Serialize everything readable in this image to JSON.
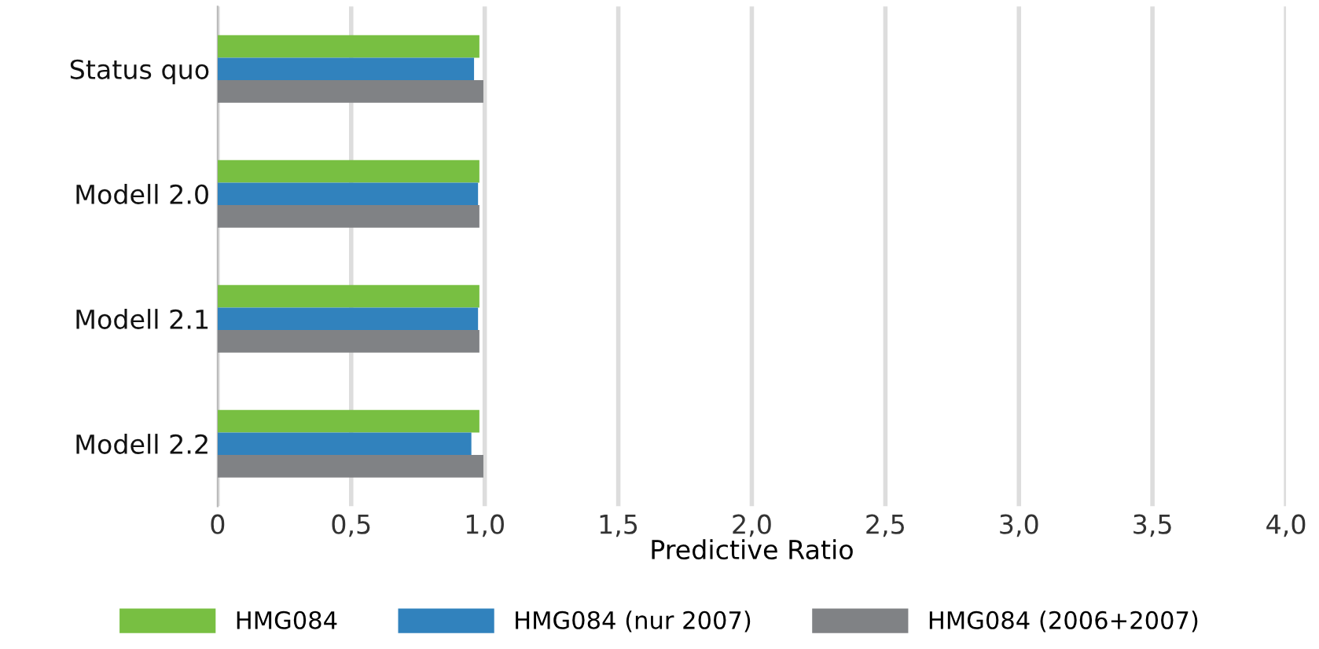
{
  "chart_data": {
    "type": "bar",
    "orientation": "horizontal",
    "xlabel": "Predictive Ratio",
    "categories": [
      "Status quo",
      "Modell 2.0",
      "Modell 2.1",
      "Modell 2.2"
    ],
    "series": [
      {
        "name": "HMG084",
        "color": "#78bf42",
        "values": [
          0.98,
          0.98,
          0.98,
          0.98
        ]
      },
      {
        "name": "HMG084 (nur 2007)",
        "color": "#3182bd",
        "values": [
          0.96,
          0.975,
          0.975,
          0.95
        ]
      },
      {
        "name": "HMG084 (2006+2007)",
        "color": "#808285",
        "values": [
          0.995,
          0.98,
          0.98,
          0.995
        ]
      }
    ],
    "xlim": [
      0,
      4.0
    ],
    "xticks": [
      0,
      {
        "value": 0.5,
        "label": "0,5"
      },
      {
        "value": 1.0,
        "label": "1,0"
      },
      {
        "value": 1.5,
        "label": "1,5"
      },
      {
        "value": 2.0,
        "label": "2,0"
      },
      {
        "value": 2.5,
        "label": "2,5"
      },
      {
        "value": 3.0,
        "label": "3,0"
      },
      {
        "value": 3.5,
        "label": "3,5"
      },
      {
        "value": 4.0,
        "label": "4,0"
      }
    ],
    "grid": "x",
    "legend": "bottom"
  }
}
